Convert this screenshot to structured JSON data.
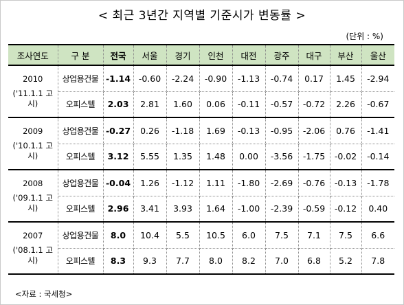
{
  "title": "< 최근 3년간 지역별 기준시가 변동률 >",
  "unit": "(단위 : %)",
  "headers": [
    "조사연도",
    "구 분",
    "전국",
    "서울",
    "경기",
    "인천",
    "대전",
    "광주",
    "대구",
    "부산",
    "울산"
  ],
  "groups": [
    {
      "year": "2010",
      "notice": "('11.1.1 고시)",
      "rows": [
        {
          "category": "상업용건물",
          "values": [
            "-1.14",
            "-0.60",
            "-2.24",
            "-0.90",
            "-1.13",
            "-0.74",
            "0.17",
            "1.45",
            "-2.94"
          ]
        },
        {
          "category": "오피스텔",
          "values": [
            "2.03",
            "2.81",
            "1.60",
            "0.06",
            "-0.11",
            "-0.57",
            "-0.72",
            "2.26",
            "-0.67"
          ]
        }
      ]
    },
    {
      "year": "2009",
      "notice": "('10.1.1 고시)",
      "rows": [
        {
          "category": "상업용건물",
          "values": [
            "-0.27",
            "0.26",
            "-1.18",
            "1.69",
            "-0.13",
            "-0.95",
            "-2.06",
            "0.76",
            "-1.41"
          ]
        },
        {
          "category": "오피스텔",
          "values": [
            "3.12",
            "5.55",
            "1.35",
            "1.48",
            "0.00",
            "-3.56",
            "-1.75",
            "-0.02",
            "-0.14"
          ]
        }
      ]
    },
    {
      "year": "2008",
      "notice": "('09.1.1 고시)",
      "rows": [
        {
          "category": "상업용건물",
          "values": [
            "-0.04",
            "1.26",
            "-1.12",
            "1.11",
            "-1.80",
            "-2.69",
            "-0.76",
            "-0.13",
            "-1.78"
          ]
        },
        {
          "category": "오피스텔",
          "values": [
            "2.96",
            "3.41",
            "3.93",
            "1.64",
            "-1.00",
            "-2.39",
            "-0.59",
            "-0.12",
            "0.40"
          ]
        }
      ]
    },
    {
      "year": "2007",
      "notice": "('08.1.1 고시)",
      "rows": [
        {
          "category": "상업용건물",
          "values": [
            "8.0",
            "10.4",
            "5.5",
            "10.5",
            "6.0",
            "7.5",
            "7.1",
            "7.5",
            "6.6"
          ]
        },
        {
          "category": "오피스텔",
          "values": [
            "8.3",
            "9.3",
            "7.7",
            "8.0",
            "8.2",
            "7.0",
            "6.8",
            "5.2",
            "7.8"
          ]
        }
      ]
    }
  ],
  "source": "<자료 : 국세청>"
}
